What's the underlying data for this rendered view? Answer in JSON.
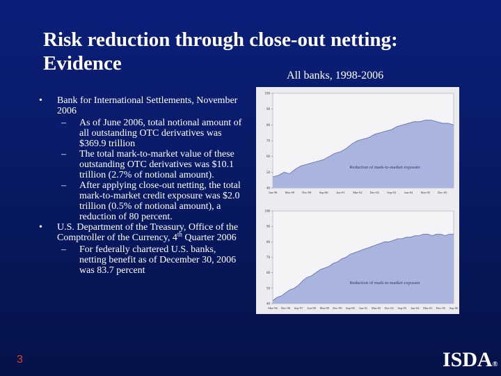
{
  "title": "Risk reduction through close-out netting: Evidence",
  "subtitle": "All banks, 1998-2006",
  "bullets": [
    {
      "text": "Bank for International Settlements, November 2006",
      "subitems": [
        "As of June 2006, total notional amount of all outstanding OTC derivatives was $369.9 trillion",
        "The total mark-to-market value of these outstanding OTC derivatives was $10.1 trillion (2.7% of notional amount).",
        "After applying close-out netting, the total mark-to-market credit exposure was $2.0 trillion (0.5% of notional amount), a reduction of 80 percent."
      ]
    },
    {
      "text_parts": [
        "U.S. Department of the Treasury, Office of the Comptroller of the Currency, 4",
        "th",
        " Quarter 2006"
      ],
      "subitems": [
        "For federally chartered U.S. banks, netting benefit as of December 30, 2006 was 83.7 percent"
      ]
    }
  ],
  "chart_data": [
    {
      "type": "area",
      "annotation": "Reduction of mark-to-market exposure",
      "color": "#a9b5de",
      "line_color": "#5a6aa8",
      "categories": [
        "Jun-98",
        null,
        null,
        "Mar-99",
        null,
        null,
        "Dec-99",
        null,
        null,
        "Sep-00",
        null,
        null,
        "Jun-01",
        null,
        null,
        "Mar-02",
        null,
        null,
        "Dec-02",
        null,
        null,
        "Sep-03",
        null,
        null,
        "Jun-04",
        null,
        null,
        "Mar-05",
        null,
        null,
        "Dec-05",
        null,
        null
      ],
      "values": [
        47,
        48,
        50,
        49,
        52,
        54,
        55,
        56,
        57,
        58,
        60,
        62,
        63,
        65,
        68,
        70,
        71,
        72,
        74,
        75,
        76,
        77,
        79,
        80,
        81,
        82,
        82,
        83,
        83,
        82,
        81,
        81,
        80
      ],
      "ylim": [
        40,
        100
      ],
      "yticks": [
        40,
        50,
        60,
        70,
        80,
        90,
        100
      ]
    },
    {
      "type": "area",
      "annotation": "Reduction of mark-to-market exposure",
      "color": "#a9b5de",
      "line_color": "#5a6aa8",
      "categories": [
        "Mar-96",
        null,
        null,
        "Dec-96",
        null,
        null,
        "Sep-97",
        null,
        null,
        "Jun-98",
        null,
        null,
        "Mar-99",
        null,
        null,
        "Dec-99",
        null,
        null,
        "Sep-00",
        null,
        null,
        "Jun-01",
        null,
        null,
        "Mar-02",
        null,
        null,
        "Dec-02",
        null,
        null,
        "Sep-03",
        null,
        null,
        "Jun-04",
        null,
        null,
        "Mar-05",
        null,
        null,
        "Dec-05",
        null,
        null,
        "Sep-06"
      ],
      "values": [
        42,
        44,
        45,
        47,
        49,
        50,
        52,
        55,
        57,
        58,
        60,
        62,
        63,
        64,
        66,
        67,
        69,
        70,
        72,
        73,
        74,
        75,
        76,
        77,
        78,
        79,
        80,
        80,
        81,
        82,
        82,
        83,
        83,
        84,
        84,
        85,
        85,
        84,
        85,
        85,
        84,
        85,
        85
      ],
      "ylim": [
        40,
        100
      ],
      "yticks": [
        40,
        50,
        60,
        70,
        80,
        90,
        100
      ]
    }
  ],
  "page_number": "3",
  "logo": "ISDA",
  "logo_mark": "®"
}
